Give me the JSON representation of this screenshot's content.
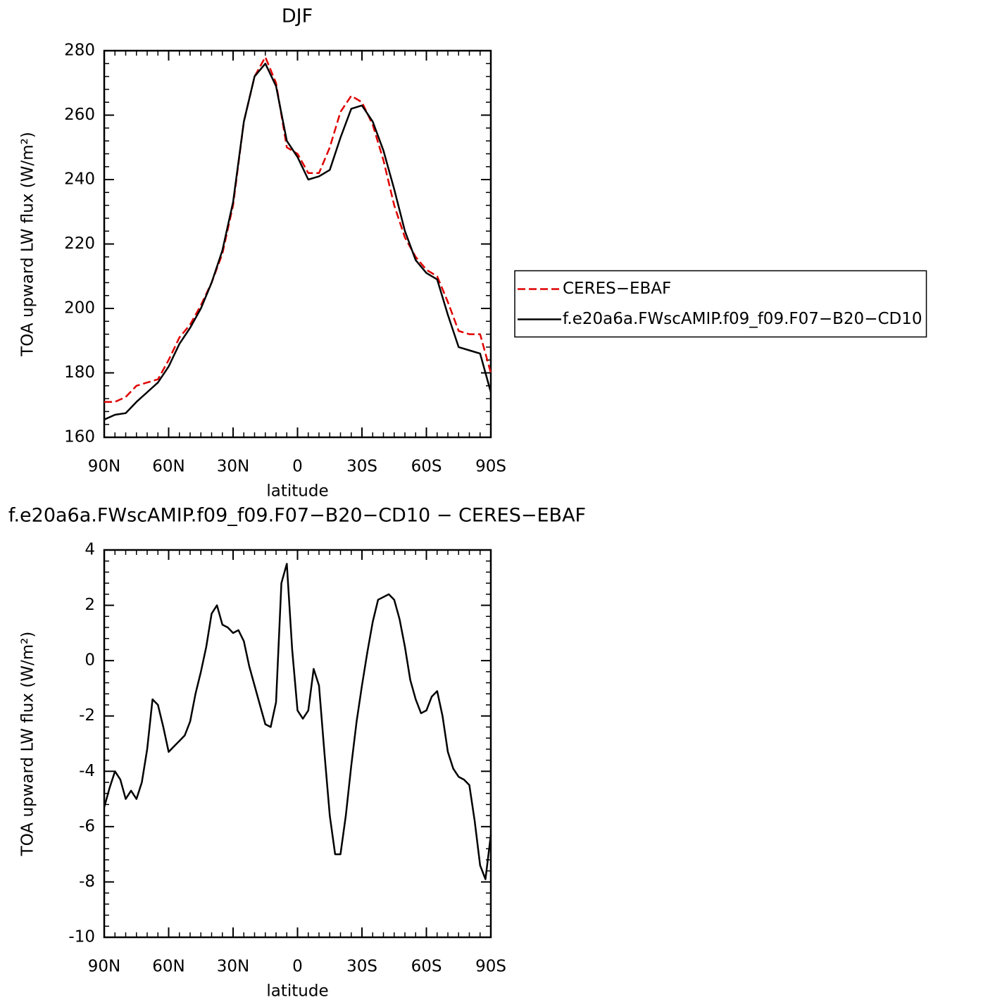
{
  "chart_data": [
    {
      "type": "line",
      "title": "DJF",
      "xlabel": "latitude",
      "ylabel": "TOA upward LW flux (W/m²)",
      "x": [
        90,
        85,
        80,
        75,
        70,
        65,
        60,
        55,
        50,
        45,
        40,
        35,
        30,
        25,
        20,
        15,
        10,
        5,
        0,
        -5,
        -10,
        -15,
        -20,
        -25,
        -30,
        -35,
        -40,
        -45,
        -50,
        -55,
        -60,
        -65,
        -70,
        -75,
        -80,
        -85,
        -90
      ],
      "xlim": [
        90,
        -90
      ],
      "xticks": [
        {
          "value": 90,
          "label": "90N"
        },
        {
          "value": 60,
          "label": "60N"
        },
        {
          "value": 30,
          "label": "30N"
        },
        0,
        {
          "value": -30,
          "label": "30S"
        },
        {
          "value": -60,
          "label": "60S"
        },
        {
          "value": -90,
          "label": "90S"
        }
      ],
      "ylim": [
        160,
        280
      ],
      "yticks": [
        160,
        180,
        200,
        220,
        240,
        260,
        280
      ],
      "legend": "right",
      "series": [
        {
          "name": "CERES−EBAF",
          "color": "#e00000",
          "style": "dashed",
          "values": [
            171,
            171,
            172.5,
            176,
            177,
            178,
            184,
            191,
            195,
            201,
            208,
            217,
            232,
            258,
            272,
            278,
            270,
            250,
            248,
            242,
            242,
            250,
            261,
            266,
            264,
            257,
            246,
            232,
            222,
            216,
            212,
            210,
            202,
            193,
            192,
            192,
            180
          ]
        },
        {
          "name": "f.e20a6a.FWscAMIP.f09_f09.F07−B20−CD10",
          "color": "#000000",
          "style": "solid",
          "values": [
            165.5,
            167,
            167.5,
            171,
            174,
            177,
            182,
            189,
            194,
            200,
            208,
            218,
            233,
            258,
            272,
            276,
            269,
            252,
            247,
            240,
            241,
            243,
            253,
            262,
            263,
            258,
            249,
            237,
            224,
            215,
            211,
            209,
            198,
            188,
            187,
            186,
            174
          ]
        }
      ]
    },
    {
      "type": "line",
      "title": "f.e20a6a.FWscAMIP.f09_f09.F07−B20−CD10 − CERES−EBAF",
      "xlabel": "latitude",
      "ylabel": "TOA upward LW flux (W/m²)",
      "x": [
        90,
        87.5,
        85,
        82.5,
        80,
        77.5,
        75,
        72.5,
        70,
        67.5,
        65,
        62.5,
        60,
        57.5,
        55,
        52.5,
        50,
        47.5,
        45,
        42.5,
        40,
        37.5,
        35,
        32.5,
        30,
        27.5,
        25,
        22.5,
        20,
        17.5,
        15,
        12.5,
        10,
        7.5,
        5,
        2.5,
        0,
        -2.5,
        -5,
        -7.5,
        -10,
        -12.5,
        -15,
        -17.5,
        -20,
        -22.5,
        -25,
        -27.5,
        -30,
        -32.5,
        -35,
        -37.5,
        -40,
        -42.5,
        -45,
        -47.5,
        -50,
        -52.5,
        -55,
        -57.5,
        -60,
        -62.5,
        -65,
        -67.5,
        -70,
        -72.5,
        -75,
        -77.5,
        -80,
        -82.5,
        -85,
        -87.5,
        -90
      ],
      "xlim": [
        90,
        -90
      ],
      "xticks": [
        {
          "value": 90,
          "label": "90N"
        },
        {
          "value": 60,
          "label": "60N"
        },
        {
          "value": 30,
          "label": "30N"
        },
        0,
        {
          "value": -30,
          "label": "30S"
        },
        {
          "value": -60,
          "label": "60S"
        },
        {
          "value": -90,
          "label": "90S"
        }
      ],
      "ylim": [
        -10,
        4
      ],
      "yticks": [
        -10,
        -8,
        -6,
        -4,
        -2,
        0,
        2,
        4
      ],
      "color": "#000000",
      "values": [
        -5.3,
        -4.6,
        -4.0,
        -4.3,
        -5.0,
        -4.7,
        -5.0,
        -4.4,
        -3.2,
        -1.4,
        -1.6,
        -2.4,
        -3.3,
        -3.1,
        -2.9,
        -2.7,
        -2.2,
        -1.2,
        -0.4,
        0.5,
        1.7,
        2.0,
        1.3,
        1.2,
        1.0,
        1.1,
        0.7,
        -0.2,
        -0.9,
        -1.6,
        -2.3,
        -2.4,
        -1.5,
        2.8,
        3.5,
        0.4,
        -1.8,
        -2.1,
        -1.8,
        -0.3,
        -0.9,
        -3.3,
        -5.6,
        -7.0,
        -7.0,
        -5.6,
        -3.8,
        -2.2,
        -0.9,
        0.3,
        1.4,
        2.2,
        2.3,
        2.4,
        2.2,
        1.5,
        0.5,
        -0.7,
        -1.4,
        -1.9,
        -1.8,
        -1.3,
        -1.1,
        -2.0,
        -3.3,
        -3.9,
        -4.2,
        -4.3,
        -4.5,
        -5.8,
        -7.4,
        -7.9,
        -6.3
      ]
    }
  ]
}
